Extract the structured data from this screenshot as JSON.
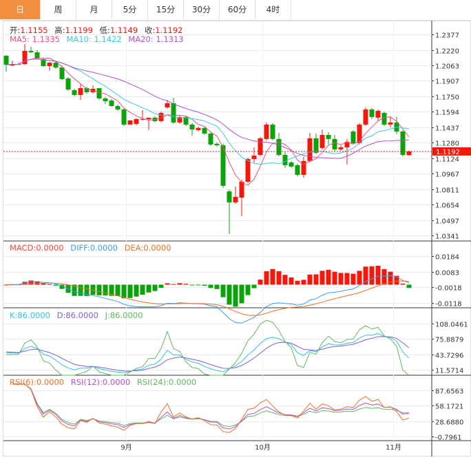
{
  "tabs": [
    "日",
    "周",
    "月",
    "5分",
    "15分",
    "30分",
    "60分",
    "4时"
  ],
  "active_tab": 0,
  "ohlc_legend": {
    "open_label": "开:",
    "open": "1.1155",
    "high_label": "高:",
    "high": "1.1199",
    "low_label": "低:",
    "low": "1.1149",
    "close_label": "收:",
    "close": "1.1192"
  },
  "ma_legend": {
    "ma5": "MA5: 1.1335",
    "ma10": "MA10: 1.1422",
    "ma20": "MA20: 1.1313"
  },
  "macd_legend": {
    "macd": "MACD:0.0000",
    "diff": "DIFF:0.0000",
    "dea": "DEA:0.0000"
  },
  "kdj_legend": {
    "k": "K:86.0000",
    "d": "D:86.0000",
    "j": "J:86.0000"
  },
  "rsi_legend": {
    "rsi6": "RSI(6):0.0000",
    "rsi12": "RSI(12):0.0000",
    "rsi24": "RSI(24):0.0000"
  },
  "colors": {
    "up": "#f5170a",
    "down": "#0aa30a",
    "ma5": "#f0507a",
    "ma10": "#3cc8dc",
    "ma20": "#b050d0",
    "diff": "#3c9cf0",
    "dea": "#f07020",
    "k": "#30c0e0",
    "d": "#8060d0",
    "j": "#60b860",
    "rsi6": "#f07020",
    "rsi12": "#b050d0",
    "rsi24": "#60b860",
    "accent": "#f18e3f"
  },
  "chart_data": {
    "type": "candlestick",
    "current_price": "1.1192",
    "price_axis": {
      "ticks": [
        "1.2377",
        "1.2220",
        "1.2063",
        "1.1907",
        "1.1750",
        "1.1594",
        "1.1437",
        "1.1280",
        "1.1124",
        "1.0967",
        "1.0811",
        "1.0654",
        "1.0497",
        "1.0341"
      ],
      "range": [
        1.0341,
        1.2377
      ]
    },
    "macd_axis": {
      "ticks": [
        "0.0184",
        "0.0083",
        "-0.0018",
        "-0.0118"
      ],
      "range": [
        -0.0118,
        0.0184
      ]
    },
    "kdj_axis": {
      "ticks": [
        "108.0461",
        "75.8879",
        "43.7296",
        "11.5714"
      ],
      "range": [
        11.5714,
        108.0461
      ]
    },
    "rsi_axis": {
      "ticks": [
        "87.6563",
        "58.1721",
        "28.6880",
        "-0.7961"
      ],
      "range": [
        -0.7961,
        87.6563
      ]
    },
    "x_labels": [
      {
        "label": "9月",
        "index": 19.3
      },
      {
        "label": "10月",
        "index": 41.3
      },
      {
        "label": "11月",
        "index": 62.4
      }
    ],
    "candles_ohlc": [
      [
        1.2161,
        1.2168,
        1.2001,
        1.207
      ],
      [
        1.2063,
        1.2112,
        1.2056,
        1.2077
      ],
      [
        1.2077,
        1.2091,
        1.207,
        1.2077
      ],
      [
        1.2077,
        1.2279,
        1.207,
        1.221
      ],
      [
        1.221,
        1.2252,
        1.2189,
        1.2196
      ],
      [
        1.2196,
        1.2217,
        1.2126,
        1.2133
      ],
      [
        1.2126,
        1.214,
        1.2049,
        1.2056
      ],
      [
        1.2056,
        1.2098,
        1.2008,
        1.2091
      ],
      [
        1.2091,
        1.2105,
        1.2028,
        1.2042
      ],
      [
        1.2042,
        1.2063,
        1.1917,
        1.1924
      ],
      [
        1.1931,
        1.1945,
        1.1805,
        1.1819
      ],
      [
        1.1812,
        1.1826,
        1.175,
        1.1764
      ],
      [
        1.1764,
        1.1875,
        1.1715,
        1.1833
      ],
      [
        1.1833,
        1.1847,
        1.1778,
        1.1792
      ],
      [
        1.1792,
        1.1861,
        1.1778,
        1.1826
      ],
      [
        1.1833,
        1.1736,
        1.1715,
        1.1729
      ],
      [
        1.1729,
        1.1743,
        1.1673,
        1.1701
      ],
      [
        1.1708,
        1.1722,
        1.1645,
        1.1652
      ],
      [
        1.1652,
        1.1666,
        1.1603,
        1.1617
      ],
      [
        1.1617,
        1.1631,
        1.145,
        1.1464
      ],
      [
        1.1464,
        1.1478,
        1.1485,
        1.1506
      ],
      [
        1.1471,
        1.1527,
        1.1457,
        1.152
      ],
      [
        1.152,
        1.161,
        1.1506,
        1.152
      ],
      [
        1.152,
        1.1534,
        1.1408,
        1.1534
      ],
      [
        1.1534,
        1.1548,
        1.1485,
        1.1499
      ],
      [
        1.1499,
        1.1596,
        1.1485,
        1.1582
      ],
      [
        1.1638,
        1.1715,
        1.1624,
        1.168
      ],
      [
        1.168,
        1.1736,
        1.1471,
        1.1485
      ],
      [
        1.1485,
        1.1555,
        1.1471,
        1.1541
      ],
      [
        1.1541,
        1.1555,
        1.145,
        1.1464
      ],
      [
        1.1464,
        1.1478,
        1.1352,
        1.1415
      ],
      [
        1.1408,
        1.1443,
        1.1394,
        1.1429
      ],
      [
        1.1429,
        1.1443,
        1.1359,
        1.1373
      ],
      [
        1.1373,
        1.1387,
        1.1248,
        1.1262
      ],
      [
        1.1269,
        1.1283,
        1.1241,
        1.1255
      ],
      [
        1.1255,
        1.1269,
        1.0823,
        1.0844
      ],
      [
        1.0788,
        1.0802,
        1.0356,
        1.0676
      ],
      [
        1.0676,
        1.0837,
        1.0662,
        1.0732
      ],
      [
        1.0725,
        1.0906,
        1.0537,
        1.0885
      ],
      [
        1.0885,
        1.1129,
        1.0871,
        1.1115
      ],
      [
        1.1115,
        1.1234,
        1.108,
        1.115
      ],
      [
        1.1157,
        1.1339,
        1.1143,
        1.1325
      ],
      [
        1.1318,
        1.1485,
        1.1304,
        1.1464
      ],
      [
        1.1464,
        1.1478,
        1.1304,
        1.1318
      ],
      [
        1.1318,
        1.138,
        1.1143,
        1.1157
      ],
      [
        1.1157,
        1.1185,
        1.1025,
        1.1053
      ],
      [
        1.1081,
        1.1095,
        1.1025,
        1.1039
      ],
      [
        1.1053,
        1.1067,
        1.0941,
        1.0955
      ],
      [
        1.0955,
        1.1136,
        1.0927,
        1.1095
      ],
      [
        1.1095,
        1.138,
        1.1081,
        1.1325
      ],
      [
        1.1325,
        1.1373,
        1.1164,
        1.1178
      ],
      [
        1.1227,
        1.1415,
        1.1213,
        1.1359
      ],
      [
        1.1359,
        1.1387,
        1.1262,
        1.1318
      ],
      [
        1.1318,
        1.1359,
        1.1199,
        1.1213
      ],
      [
        1.1213,
        1.1255,
        1.1199,
        1.1234
      ],
      [
        1.1234,
        1.1318,
        1.106,
        1.129
      ],
      [
        1.1394,
        1.1408,
        1.1262,
        1.1276
      ],
      [
        1.1276,
        1.1478,
        1.1262,
        1.1464
      ],
      [
        1.1464,
        1.1638,
        1.145,
        1.1617
      ],
      [
        1.1617,
        1.1631,
        1.152,
        1.1541
      ],
      [
        1.1534,
        1.1617,
        1.15,
        1.1603
      ],
      [
        1.1582,
        1.1596,
        1.145,
        1.1464
      ],
      [
        1.1464,
        1.1548,
        1.1436,
        1.1485
      ],
      [
        1.1485,
        1.1541,
        1.1366,
        1.1394
      ],
      [
        1.1394,
        1.1408,
        1.1143,
        1.1157
      ],
      [
        1.1155,
        1.1199,
        1.1149,
        1.1192
      ]
    ]
  }
}
